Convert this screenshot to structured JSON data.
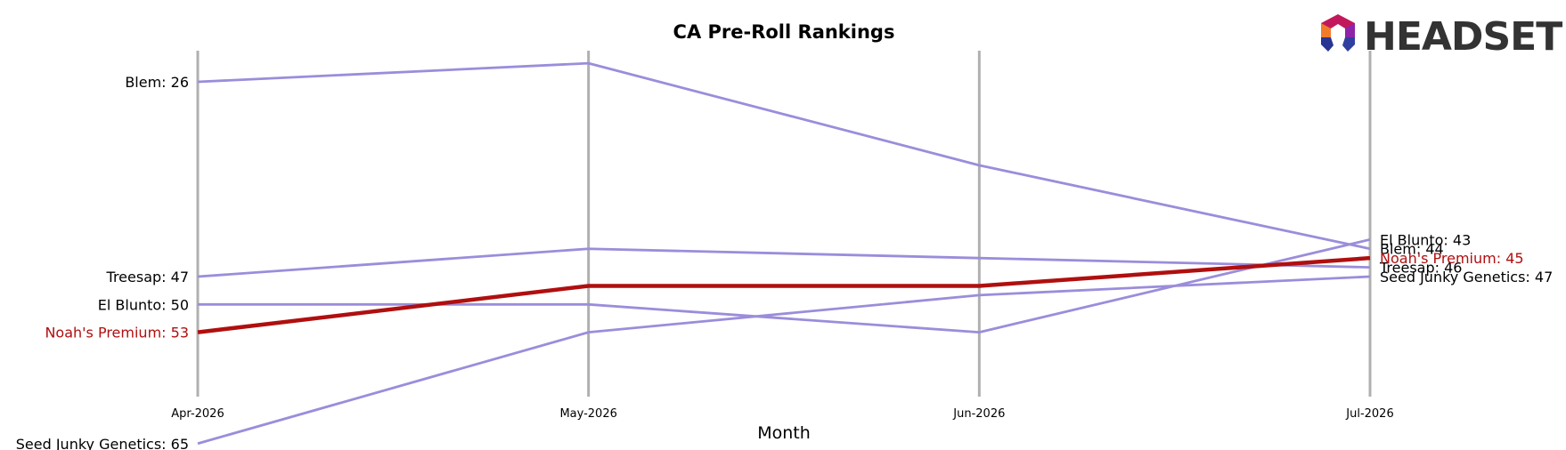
{
  "chart_data": {
    "type": "line",
    "title": "CA Pre-Roll Rankings",
    "xlabel": "Month",
    "ylabel": "",
    "categories": [
      "Apr-2026",
      "May-2026",
      "Jun-2026",
      "Jul-2026"
    ],
    "y_inverted": true,
    "grid": "vertical lines at each month",
    "series": [
      {
        "name": "Blem",
        "values": [
          26,
          24,
          35,
          44
        ],
        "highlight": false
      },
      {
        "name": "Treesap",
        "values": [
          47,
          44,
          45,
          46
        ],
        "highlight": false
      },
      {
        "name": "El Blunto",
        "values": [
          50,
          50,
          53,
          43
        ],
        "highlight": false
      },
      {
        "name": "Noah's Premium",
        "values": [
          53,
          48,
          48,
          45
        ],
        "highlight": true
      },
      {
        "name": "Seed Junky Genetics",
        "values": [
          65,
          53,
          49,
          47
        ],
        "highlight": false
      }
    ],
    "colors": {
      "default_line": "#9b8ddb",
      "highlight_line": "#b00f0f",
      "highlight_text": "#b00f0f",
      "gridline": "#b0b0b0"
    }
  },
  "logo": {
    "text": "HEADSET"
  }
}
